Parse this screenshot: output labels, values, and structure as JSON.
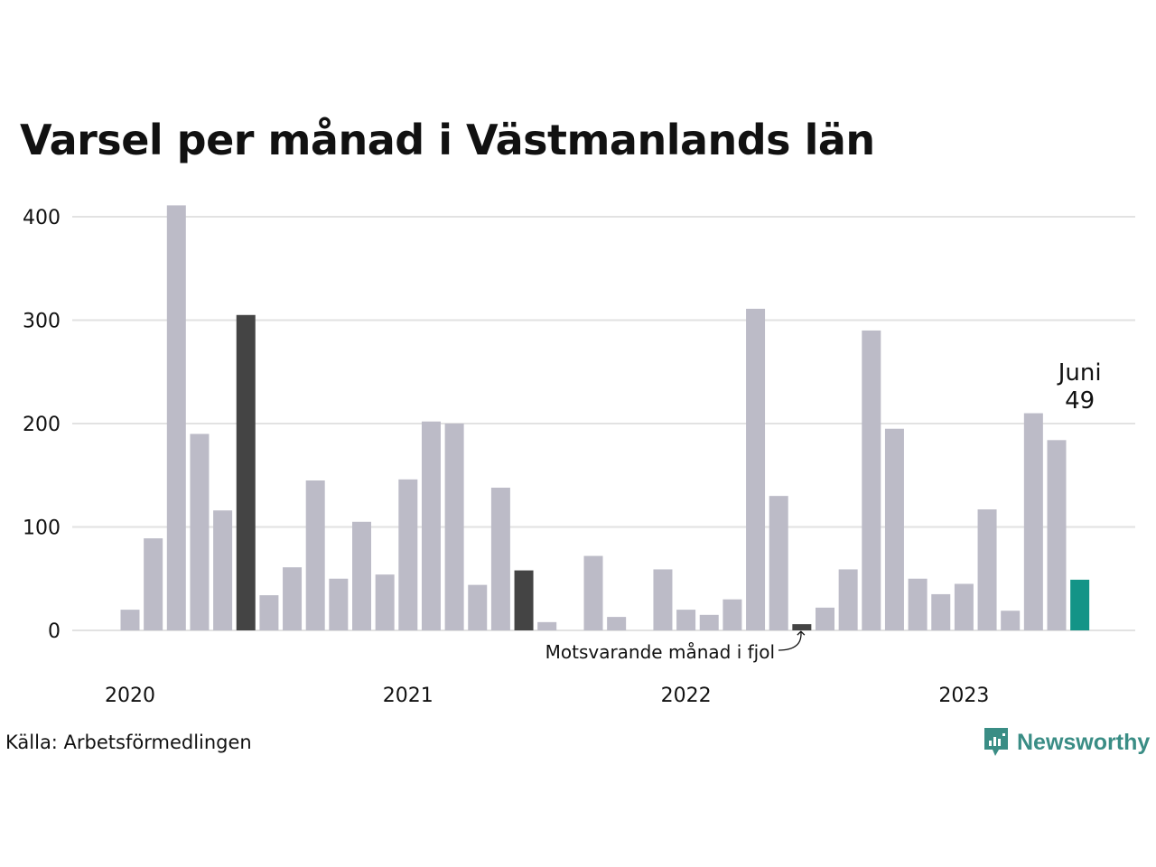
{
  "title": "Varsel per månad i Västmanlands län",
  "source": "Källa: Arbetsförmedlingen",
  "brand": {
    "name": "Newsworthy",
    "icon": "newsworthy-logo-icon",
    "color": "#3a8d85"
  },
  "colors": {
    "default": "#bcbbc7",
    "previous_year": "#444444",
    "current": "#139487",
    "grid": "#e2e2e2"
  },
  "chart_data": {
    "type": "bar",
    "title": "Varsel per månad i Västmanlands län",
    "xlabel": "",
    "ylabel": "",
    "ylim": [
      0,
      400
    ],
    "yticks": [
      0,
      100,
      200,
      300,
      400
    ],
    "grid": true,
    "year_labels": [
      "2020",
      "2021",
      "2022",
      "2023"
    ],
    "x": [
      "2020-01",
      "2020-02",
      "2020-03",
      "2020-04",
      "2020-05",
      "2020-06",
      "2020-07",
      "2020-08",
      "2020-09",
      "2020-10",
      "2020-11",
      "2020-12",
      "2021-01",
      "2021-02",
      "2021-03",
      "2021-04",
      "2021-05",
      "2021-06",
      "2021-07",
      "2021-08",
      "2021-09",
      "2021-10",
      "2021-11",
      "2021-12",
      "2022-01",
      "2022-02",
      "2022-03",
      "2022-04",
      "2022-05",
      "2022-06",
      "2022-07",
      "2022-08",
      "2022-09",
      "2022-10",
      "2022-11",
      "2022-12",
      "2023-01",
      "2023-02",
      "2023-03",
      "2023-04",
      "2023-05",
      "2023-06"
    ],
    "values": [
      20,
      89,
      411,
      190,
      116,
      305,
      34,
      61,
      145,
      50,
      105,
      54,
      146,
      202,
      200,
      44,
      138,
      58,
      8,
      0,
      72,
      13,
      0,
      59,
      20,
      15,
      30,
      311,
      130,
      6,
      22,
      59,
      290,
      195,
      50,
      35,
      45,
      117,
      19,
      210,
      184,
      49
    ],
    "highlight_previous_year": [
      "2020-06",
      "2021-06",
      "2022-06"
    ],
    "highlight_current": "2023-06",
    "annotations": {
      "current_label": "Juni",
      "current_value": "49",
      "previous_label": "Motsvarande månad i fjol"
    }
  }
}
